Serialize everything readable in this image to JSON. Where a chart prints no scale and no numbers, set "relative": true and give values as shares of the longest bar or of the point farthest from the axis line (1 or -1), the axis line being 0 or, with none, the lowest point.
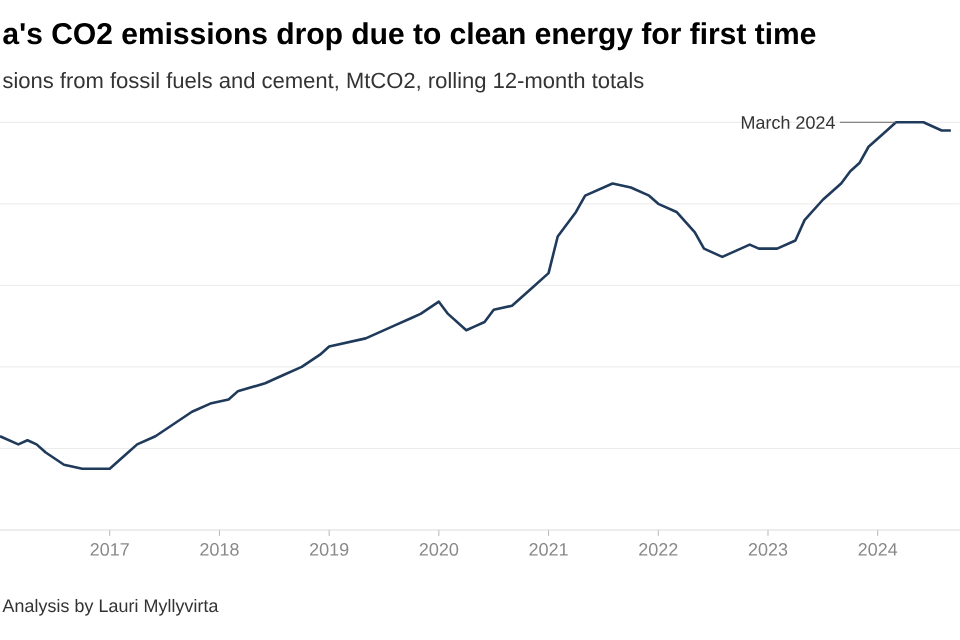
{
  "chart_data": {
    "type": "line",
    "title": "a's CO2 emissions drop due to clean energy for first time",
    "subtitle": "sions from fossil fuels and cement, MtCO2, rolling 12-month totals",
    "relative": true,
    "grid": "y",
    "x": [
      "2016-01",
      "2016-03",
      "2016-04",
      "2016-05",
      "2016-06",
      "2016-08",
      "2016-10",
      "2016-12",
      "2017-01",
      "2017-03",
      "2017-04",
      "2017-06",
      "2017-08",
      "2017-10",
      "2017-12",
      "2018-02",
      "2018-03",
      "2018-06",
      "2018-08",
      "2018-10",
      "2018-12",
      "2019-01",
      "2019-03",
      "2019-05",
      "2019-06",
      "2019-08",
      "2019-10",
      "2019-11",
      "2020-01",
      "2020-02",
      "2020-04",
      "2020-05",
      "2020-06",
      "2020-07",
      "2020-09",
      "2020-11",
      "2021-01",
      "2021-02",
      "2021-04",
      "2021-05",
      "2021-07",
      "2021-08",
      "2021-10",
      "2021-12",
      "2022-01",
      "2022-03",
      "2022-05",
      "2022-06",
      "2022-08",
      "2022-09",
      "2022-11",
      "2022-12",
      "2023-02",
      "2023-04",
      "2023-05",
      "2023-07",
      "2023-09",
      "2023-10",
      "2023-11",
      "2023-12",
      "2024-01",
      "2024-02",
      "2024-03",
      "2024-05",
      "2024-06",
      "2024-07",
      "2024-08",
      "2024-09"
    ],
    "series": [
      {
        "color": "#1f3a5a",
        "values": [
          0.23,
          0.21,
          0.22,
          0.21,
          0.19,
          0.16,
          0.15,
          0.15,
          0.15,
          0.19,
          0.21,
          0.23,
          0.26,
          0.29,
          0.31,
          0.32,
          0.34,
          0.36,
          0.38,
          0.4,
          0.43,
          0.45,
          0.46,
          0.47,
          0.48,
          0.5,
          0.52,
          0.53,
          0.56,
          0.53,
          0.49,
          0.5,
          0.51,
          0.54,
          0.55,
          0.59,
          0.63,
          0.72,
          0.78,
          0.82,
          0.84,
          0.85,
          0.84,
          0.82,
          0.8,
          0.78,
          0.73,
          0.69,
          0.67,
          0.68,
          0.7,
          0.69,
          0.69,
          0.71,
          0.76,
          0.81,
          0.85,
          0.88,
          0.9,
          0.94,
          0.96,
          0.98,
          1,
          1,
          1,
          0.99,
          0.98,
          0.98
        ]
      }
    ],
    "xlim": [
      "2016-01",
      "2024-10"
    ],
    "xticks": [
      "2017",
      "2018",
      "2019",
      "2020",
      "2021",
      "2022",
      "2023",
      "2024"
    ],
    "annotations": [
      {
        "text": "March 2024",
        "x": "2024-03",
        "y": 1
      },
      "Analysis by Lauri Myllyvirta"
    ]
  }
}
